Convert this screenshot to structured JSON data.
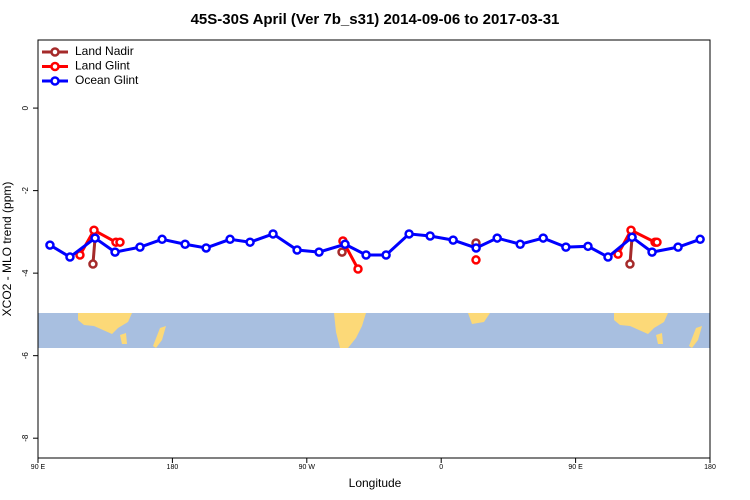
{
  "chart_data": {
    "type": "line",
    "title": "45S-30S April (Ver 7b_s31)   2014-09-06 to 2017-03-31",
    "xlabel": "Longitude",
    "ylabel": "XCO2 - MLO trend (ppm)",
    "xlim": [
      90,
      540
    ],
    "ylim": [
      -8.48,
      1.65
    ],
    "xticks": [
      {
        "value": 90,
        "label": "90 E"
      },
      180,
      {
        "value": 270,
        "label": "90 W"
      },
      {
        "value": 360,
        "label": "0"
      },
      {
        "value": 450,
        "label": "90 E"
      },
      {
        "value": 540,
        "label": "180"
      }
    ],
    "yticks": [
      0,
      -2,
      -4,
      -6,
      -8
    ],
    "legend": "top-left",
    "series": [
      {
        "name": "Land Nadir",
        "color": "#a52a2a",
        "x": [
          126.8,
          128.2,
          null,
          293.6,
          null,
          383.3,
          null,
          486.4,
          487.8
        ],
        "values": [
          -3.78,
          -3.15,
          null,
          -3.49,
          null,
          -3.27,
          null,
          -3.78,
          -3.13
        ]
      },
      {
        "name": "Land Glint",
        "color": "#ff0000",
        "x": [
          118.1,
          127.5,
          142.2,
          144.9,
          null,
          294.2,
          304.3,
          null,
          383.3,
          null,
          478.4,
          487.1,
          503.2,
          504.5
        ],
        "values": [
          -3.56,
          -2.96,
          -3.25,
          -3.25,
          null,
          -3.22,
          -3.9,
          null,
          -3.68,
          null,
          -3.54,
          -2.96,
          -3.25,
          -3.25
        ]
      },
      {
        "name": "Ocean Glint",
        "color": "#0000ff",
        "x": [
          98,
          111.4,
          128.2,
          141.6,
          158.3,
          173.1,
          188.5,
          202.6,
          218.6,
          232,
          247.4,
          263.5,
          278.2,
          295.6,
          309.7,
          323.1,
          338.5,
          352.6,
          368,
          383.4,
          397.5,
          412.9,
          428.3,
          443.5,
          458.3,
          471.7,
          487.8,
          501.2,
          518.6,
          533.4
        ],
        "values": [
          -3.32,
          -3.61,
          -3.15,
          -3.49,
          -3.37,
          -3.18,
          -3.3,
          -3.39,
          -3.18,
          -3.25,
          -3.05,
          -3.44,
          -3.49,
          -3.3,
          -3.56,
          -3.56,
          -3.05,
          -3.1,
          -3.2,
          -3.39,
          -3.15,
          -3.3,
          -3.15,
          -3.37,
          -3.35,
          -3.61,
          -3.13,
          -3.49,
          -3.37,
          -3.18
        ]
      }
    ]
  }
}
